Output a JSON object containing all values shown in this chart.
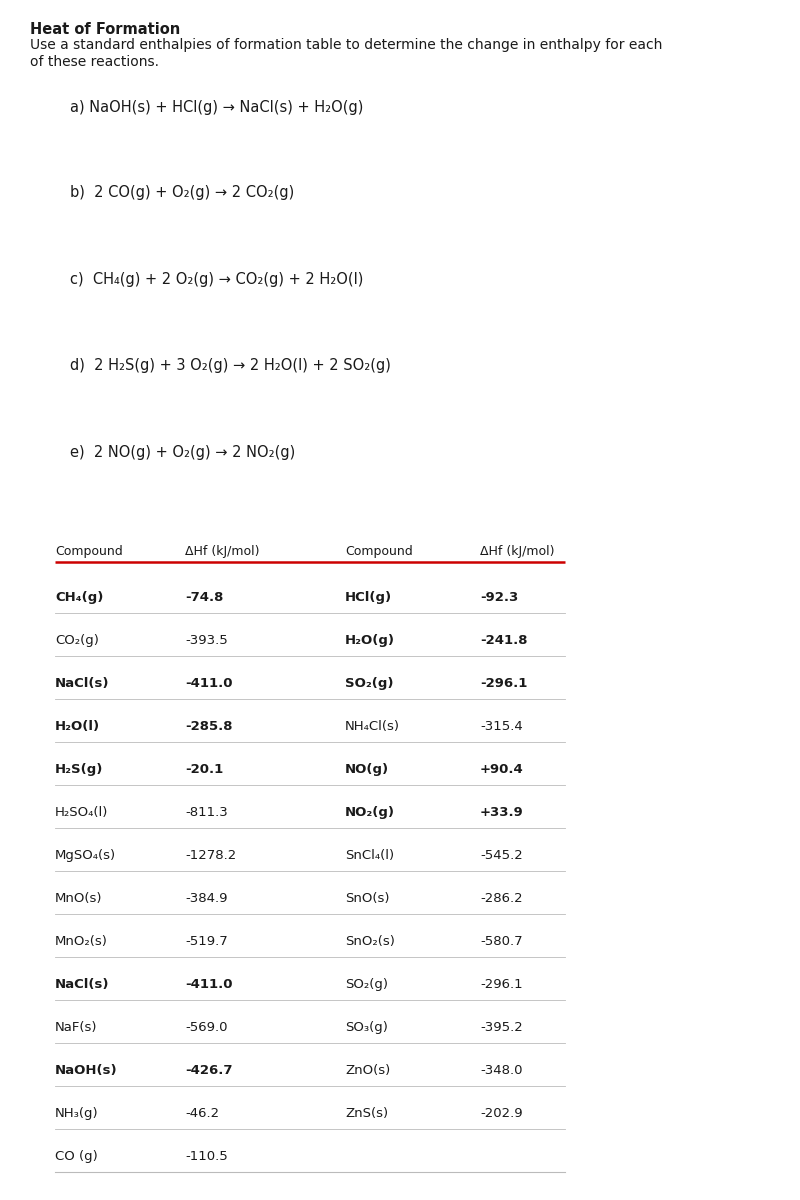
{
  "title": "Heat of Formation",
  "subtitle1": "Use a standard enthalpies of formation table to determine the change in enthalpy for each",
  "subtitle2": "of these reactions.",
  "reactions": [
    "a) NaOH(s) + HCl(g) → NaCl(s) + H₂O(g)",
    "b)  2 CO(g) + O₂(g) → 2 CO₂(g)",
    "c)  CH₄(g) + 2 O₂(g) → CO₂(g) + 2 H₂O(l)",
    "d)  2 H₂S(g) + 3 O₂(g) → 2 H₂O(l) + 2 SO₂(g)",
    "e)  2 NO(g) + O₂(g) → 2 NO₂(g)"
  ],
  "left_compounds": [
    [
      "CH₄(g)",
      "-74.8",
      true
    ],
    [
      "CO₂(g)",
      "-393.5",
      false
    ],
    [
      "NaCl(s)",
      "-411.0",
      true
    ],
    [
      "H₂O(l)",
      "-285.8",
      true
    ],
    [
      "H₂S(g)",
      "-20.1",
      true
    ],
    [
      "H₂SO₄(l)",
      "-811.3",
      false
    ],
    [
      "MgSO₄(s)",
      "-1278.2",
      false
    ],
    [
      "MnO(s)",
      "-384.9",
      false
    ],
    [
      "MnO₂(s)",
      "-519.7",
      false
    ],
    [
      "NaCl(s)",
      "-411.0",
      true
    ],
    [
      "NaF(s)",
      "-569.0",
      false
    ],
    [
      "NaOH(s)",
      "-426.7",
      true
    ],
    [
      "NH₃(g)",
      "-46.2",
      false
    ],
    [
      "CO (g)",
      "-110.5",
      false
    ]
  ],
  "right_compounds": [
    [
      "HCl(g)",
      "-92.3",
      true
    ],
    [
      "H₂O(g)",
      "-241.8",
      true
    ],
    [
      "SO₂(g)",
      "-296.1",
      true
    ],
    [
      "NH₄Cl(s)",
      "-315.4",
      false
    ],
    [
      "NO(g)",
      "+90.4",
      true
    ],
    [
      "NO₂(g)",
      "+33.9",
      true
    ],
    [
      "SnCl₄(l)",
      "-545.2",
      false
    ],
    [
      "SnO(s)",
      "-286.2",
      false
    ],
    [
      "SnO₂(s)",
      "-580.7",
      false
    ],
    [
      "SO₂(g)",
      "-296.1",
      false
    ],
    [
      "SO₃(g)",
      "-395.2",
      false
    ],
    [
      "ZnO(s)",
      "-348.0",
      false
    ],
    [
      "ZnS(s)",
      "-202.9",
      false
    ]
  ],
  "background_color": "#ffffff",
  "text_color": "#1a1a1a",
  "header_line_color": "#cc0000",
  "row_line_color": "#bbbbbb",
  "font_size_title": 10.5,
  "font_size_subtitle": 10,
  "font_size_reaction": 10.5,
  "font_size_table_header": 9,
  "font_size_table_data": 9.5
}
